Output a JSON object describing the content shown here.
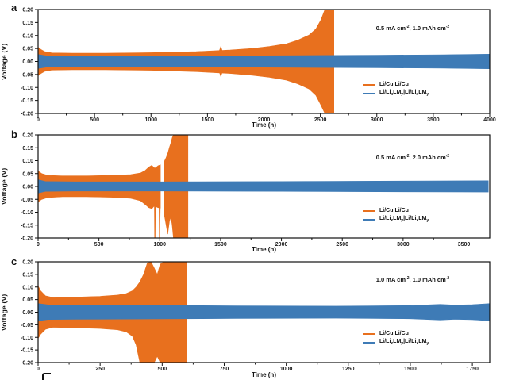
{
  "colors": {
    "orange": "#E8701E",
    "blue": "#3E7BB6",
    "axis": "#111111",
    "faded_tick": "#9a9a9a"
  },
  "legend": {
    "e1": "Li/Cu|Li/Cu",
    "e2": {
      "a": "Li/Li",
      "b": "x",
      "c": "LM",
      "d": "y",
      "e": "|Li/Li",
      "f": "x",
      "g": "LM",
      "h": "y"
    }
  },
  "panels_ui": [
    {
      "ann": {
        "p1": "0.5 mA cm",
        "s1": "-2",
        "p2": ", 1.0 mAh cm",
        "s2": "-2"
      }
    },
    {
      "ann": {
        "p1": "0.5 mA cm",
        "s1": "-2",
        "p2": ", 2.0 mAh cm",
        "s2": "-2"
      }
    },
    {
      "ann": {
        "p1": "1.0 mA cm",
        "s1": "-2",
        "p2": ", 1.0 mAh cm",
        "s2": "-2"
      }
    }
  ],
  "chart_data": {
    "type": "area",
    "description": "Galvanostatic symmetric-cell voltage vs time cycling curves, three panels; dense oscillation shown as envelope bands",
    "legend_entries": [
      "Li/Cu|Li/Cu",
      "Li/LixLMy|Li/LixLMy"
    ],
    "panels": [
      {
        "label": "a",
        "xlabel": "Time (h)",
        "ylabel": "Vottage (V)",
        "annotation": "0.5 mA cm⁻², 1.0 mAh cm⁻²",
        "xlim": [
          0,
          4000
        ],
        "ylim": [
          -0.2,
          0.2
        ],
        "xticks": [
          0,
          500,
          1000,
          1500,
          2000,
          2500,
          3000,
          3500,
          4000
        ],
        "xtick_labels": [
          "0",
          "500",
          "1000",
          "1500",
          "2000",
          "2500",
          "3000",
          "3500",
          "4000"
        ],
        "xtick_faded": [
          false,
          false,
          false,
          false,
          false,
          false,
          false,
          false,
          false
        ],
        "yticks": [
          0.2,
          0.15,
          0.1,
          0.05,
          0.0,
          -0.05,
          -0.1,
          -0.15,
          -0.2
        ],
        "ytick_labels": [
          "0.20",
          "0.15",
          "0.10",
          "0.05",
          "0.00",
          "-0.05",
          "-0.10",
          "-0.15",
          "-0.20"
        ],
        "series": [
          {
            "name": "Li/Cu|Li/Cu",
            "color": "#E8701E",
            "bands": [
              {
                "t": [
                  0,
                  25,
                  60,
                  120,
                  300,
                  600,
                  1000,
                  1400,
                  1700,
                  1900,
                  2050,
                  2200,
                  2300,
                  2400,
                  2460,
                  2505,
                  2540,
                  2620
                ],
                "up": [
                  0.055,
                  0.046,
                  0.038,
                  0.033,
                  0.032,
                  0.032,
                  0.034,
                  0.038,
                  0.044,
                  0.05,
                  0.058,
                  0.068,
                  0.082,
                  0.102,
                  0.125,
                  0.16,
                  0.2,
                  0.2
                ],
                "lo": [
                  -0.055,
                  -0.046,
                  -0.038,
                  -0.033,
                  -0.032,
                  -0.032,
                  -0.034,
                  -0.039,
                  -0.046,
                  -0.053,
                  -0.061,
                  -0.072,
                  -0.086,
                  -0.106,
                  -0.13,
                  -0.168,
                  -0.2,
                  -0.2
                ]
              },
              {
                "t": [
                  1600,
                  1618,
                  1636
                ],
                "up": [
                  0.034,
                  0.058,
                  0.034
                ],
                "lo": [
                  -0.034,
                  -0.058,
                  -0.034
                ]
              }
            ]
          },
          {
            "name": "Li/LixLMy|Li/LixLMy",
            "color": "#3E7BB6",
            "bands": [
              {
                "t": [
                  0,
                  80,
                  300,
                  1000,
                  2000,
                  3000,
                  3600,
                  4000
                ],
                "up": [
                  0.027,
                  0.021,
                  0.02,
                  0.021,
                  0.022,
                  0.024,
                  0.026,
                  0.028
                ],
                "lo": [
                  -0.027,
                  -0.021,
                  -0.02,
                  -0.021,
                  -0.022,
                  -0.024,
                  -0.026,
                  -0.028
                ]
              }
            ]
          }
        ]
      },
      {
        "label": "b",
        "xlabel": "Time (h)",
        "ylabel": "Vottage (V)",
        "annotation": "0.5 mA cm⁻², 2.0 mAh cm⁻²",
        "xlim": [
          0,
          3712
        ],
        "ylim": [
          -0.2,
          0.2
        ],
        "xticks": [
          0,
          500,
          1000,
          1500,
          2000,
          2500,
          3000,
          3500
        ],
        "xtick_labels": [
          "0",
          "500",
          "1000",
          "1500",
          "2000",
          "2500",
          "3000",
          "3500"
        ],
        "xtick_faded": [
          false,
          false,
          false,
          false,
          false,
          false,
          false,
          false
        ],
        "yticks": [
          0.2,
          0.15,
          0.1,
          0.05,
          0.0,
          -0.05,
          -0.1,
          -0.15,
          -0.2
        ],
        "ytick_labels": [
          "0.20",
          "0.15",
          "0.10",
          "0.05",
          "0.00",
          "-0.05",
          "-0.10",
          "-0.15",
          "-0.20"
        ],
        "series": [
          {
            "name": "Li/Cu|Li/Cu",
            "color": "#E8701E",
            "bands": [
              {
                "t": [
                  0,
                  30,
                  80,
                  200,
                  400,
                  600,
                  760,
                  840,
                  880,
                  910,
                  935,
                  950,
                  956,
                  958,
                  962,
                  964,
                  975,
                  985,
                  994,
                  996,
                  1000,
                  1004,
                  1005
                ],
                "up": [
                  0.06,
                  0.05,
                  0.043,
                  0.041,
                  0.041,
                  0.043,
                  0.046,
                  0.052,
                  0.062,
                  0.075,
                  0.082,
                  0.074,
                  0.072,
                  0.072,
                  0.072,
                  0.072,
                  0.076,
                  0.08,
                  0.082,
                  0.082,
                  0.083,
                  0.084,
                  0.084
                ],
                "lo": [
                  -0.06,
                  -0.05,
                  -0.043,
                  -0.04,
                  -0.04,
                  -0.042,
                  -0.046,
                  -0.055,
                  -0.07,
                  -0.082,
                  -0.086,
                  -0.078,
                  -0.076,
                  -0.2,
                  -0.2,
                  -0.076,
                  -0.08,
                  -0.082,
                  -0.083,
                  -0.2,
                  -0.2,
                  -0.084,
                  -0.084
                ]
              },
              {
                "t": [
                  1035,
                  1050,
                  1065,
                  1080,
                  1092,
                  1102,
                  1112,
                  1232
                ],
                "up": [
                  0.095,
                  0.11,
                  0.128,
                  0.152,
                  0.17,
                  0.188,
                  0.2,
                  0.2
                ],
                "lo": [
                  -0.105,
                  -0.145,
                  -0.185,
                  -0.135,
                  -0.118,
                  -0.15,
                  -0.2,
                  -0.2
                ]
              }
            ]
          },
          {
            "name": "Li/LixLMy|Li/LixLMy",
            "color": "#3E7BB6",
            "bands": [
              {
                "t": [
                  0,
                  60,
                  300,
                  1000,
                  2000,
                  3000,
                  3700
                ],
                "up": [
                  0.026,
                  0.019,
                  0.018,
                  0.018,
                  0.019,
                  0.021,
                  0.022
                ],
                "lo": [
                  -0.026,
                  -0.019,
                  -0.018,
                  -0.018,
                  -0.019,
                  -0.021,
                  -0.022
                ]
              }
            ]
          }
        ]
      },
      {
        "label": "c",
        "xlabel": "Time (h)",
        "ylabel": "Vottage (V)",
        "annotation": "1.0 mA cm⁻², 1.0 mAh cm⁻²",
        "xlim": [
          0,
          1820
        ],
        "ylim": [
          -0.2,
          0.2
        ],
        "xticks": [
          0,
          250,
          500,
          750,
          1000,
          1250,
          1500,
          1750
        ],
        "xtick_labels": [
          "0",
          "250",
          "500",
          "750",
          "1000",
          "1250",
          "1500",
          "1750"
        ],
        "xtick_faded": [
          false,
          false,
          false,
          false,
          false,
          false,
          true,
          true
        ],
        "yticks": [
          0.2,
          0.15,
          0.1,
          0.05,
          0.0,
          -0.05,
          -0.1,
          -0.15,
          -0.2
        ],
        "ytick_labels": [
          "0.20",
          "0.15",
          "0.10",
          "0.05",
          "0.00",
          "-0.05",
          "-0.10",
          "-0.15",
          "-0.20"
        ],
        "series": [
          {
            "name": "Li/Cu|Li/Cu",
            "color": "#E8701E",
            "bands": [
              {
                "t": [
                  0,
                  10,
                  30,
                  60,
                  150,
                  250,
                  320,
                  355,
                  380,
                  395,
                  410,
                  425,
                  440,
                  455,
                  468,
                  480,
                  492,
                  505,
                  600
                ],
                "up": [
                  0.105,
                  0.085,
                  0.065,
                  0.058,
                  0.06,
                  0.063,
                  0.068,
                  0.074,
                  0.085,
                  0.1,
                  0.12,
                  0.15,
                  0.195,
                  0.2,
                  0.175,
                  0.15,
                  0.19,
                  0.2,
                  0.2
                ],
                "lo": [
                  -0.105,
                  -0.088,
                  -0.068,
                  -0.06,
                  -0.062,
                  -0.065,
                  -0.07,
                  -0.078,
                  -0.095,
                  -0.13,
                  -0.2,
                  -0.2,
                  -0.2,
                  -0.2,
                  -0.2,
                  -0.175,
                  -0.2,
                  -0.2,
                  -0.2
                ]
              }
            ]
          },
          {
            "name": "Li/LixLMy|Li/LixLMy",
            "color": "#3E7BB6",
            "bands": [
              {
                "t": [
                  0,
                  40,
                  150,
                  400,
                  800,
                  1200,
                  1500,
                  1620,
                  1680,
                  1750,
                  1820
                ],
                "up": [
                  0.034,
                  0.029,
                  0.028,
                  0.027,
                  0.025,
                  0.024,
                  0.026,
                  0.031,
                  0.028,
                  0.03,
                  0.034
                ],
                "lo": [
                  -0.034,
                  -0.029,
                  -0.028,
                  -0.027,
                  -0.025,
                  -0.024,
                  -0.026,
                  -0.031,
                  -0.028,
                  -0.03,
                  -0.034
                ]
              }
            ]
          }
        ]
      }
    ]
  }
}
